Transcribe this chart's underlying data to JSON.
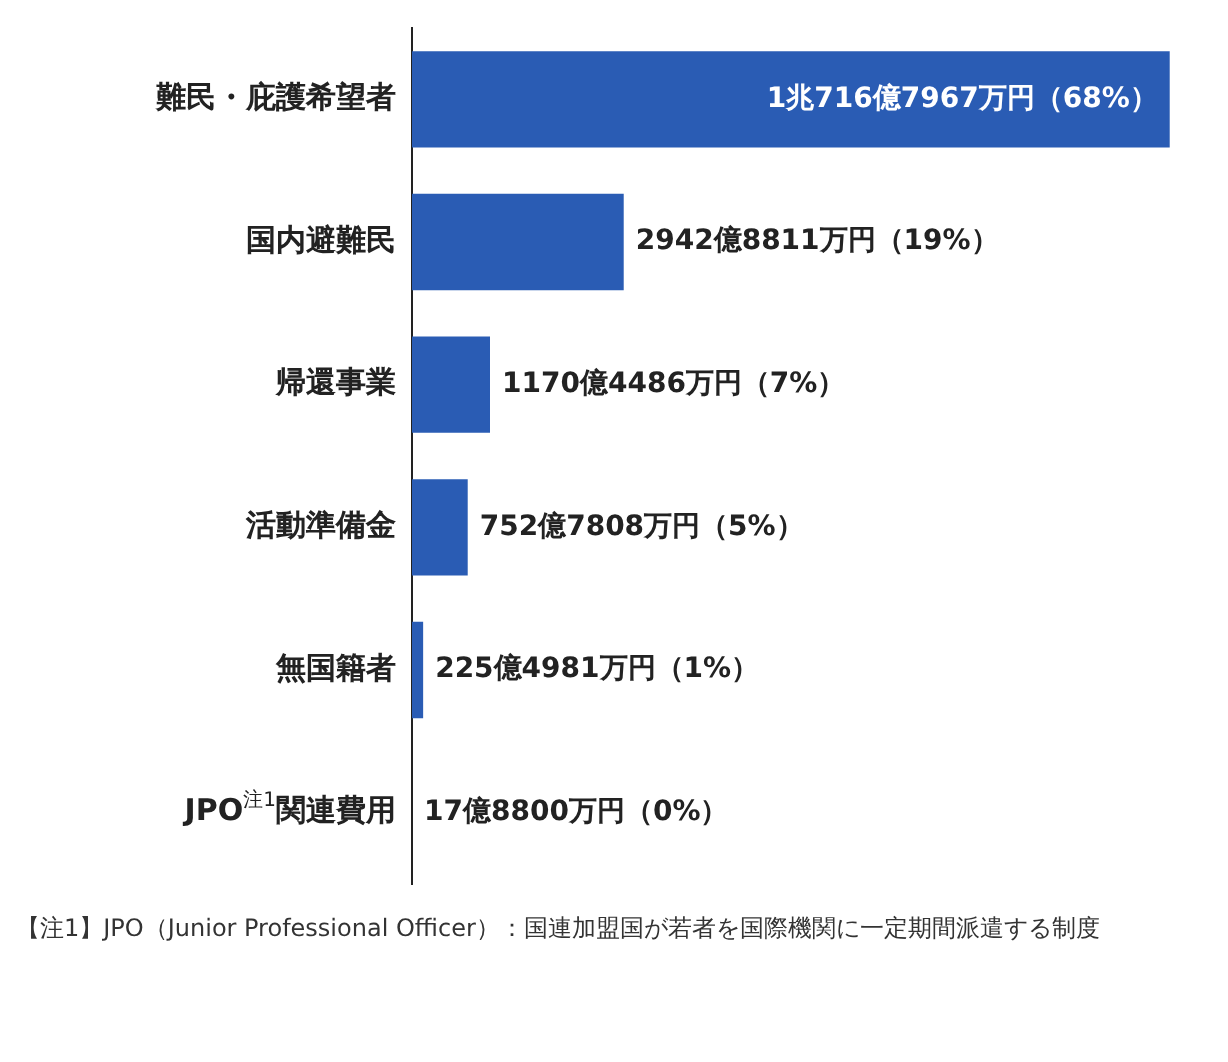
{
  "chart_data": {
    "type": "bar",
    "orientation": "horizontal",
    "categories": [
      "難民・庇護希望者",
      "国内避難民",
      "帰還事業",
      "活動準備金",
      "無国籍者",
      "JPO$^{注1}$関連費用"
    ],
    "values": [
      68,
      19,
      7,
      5,
      1,
      0
    ],
    "value_labels": [
      "1兆716億7967万円（68%）",
      "2942億8811万円（19%）",
      "1170億4486万円（7%）",
      "752億7808万円（5%）",
      "225億4981万円（1%）",
      "17億8800万円（0%）"
    ],
    "color": "#2a5cb4",
    "annotations": [
      "【注1】JPO（Junior Professional Officer）：国連加盟国が若者を国際機関に一定期間派遣する制度"
    ]
  }
}
